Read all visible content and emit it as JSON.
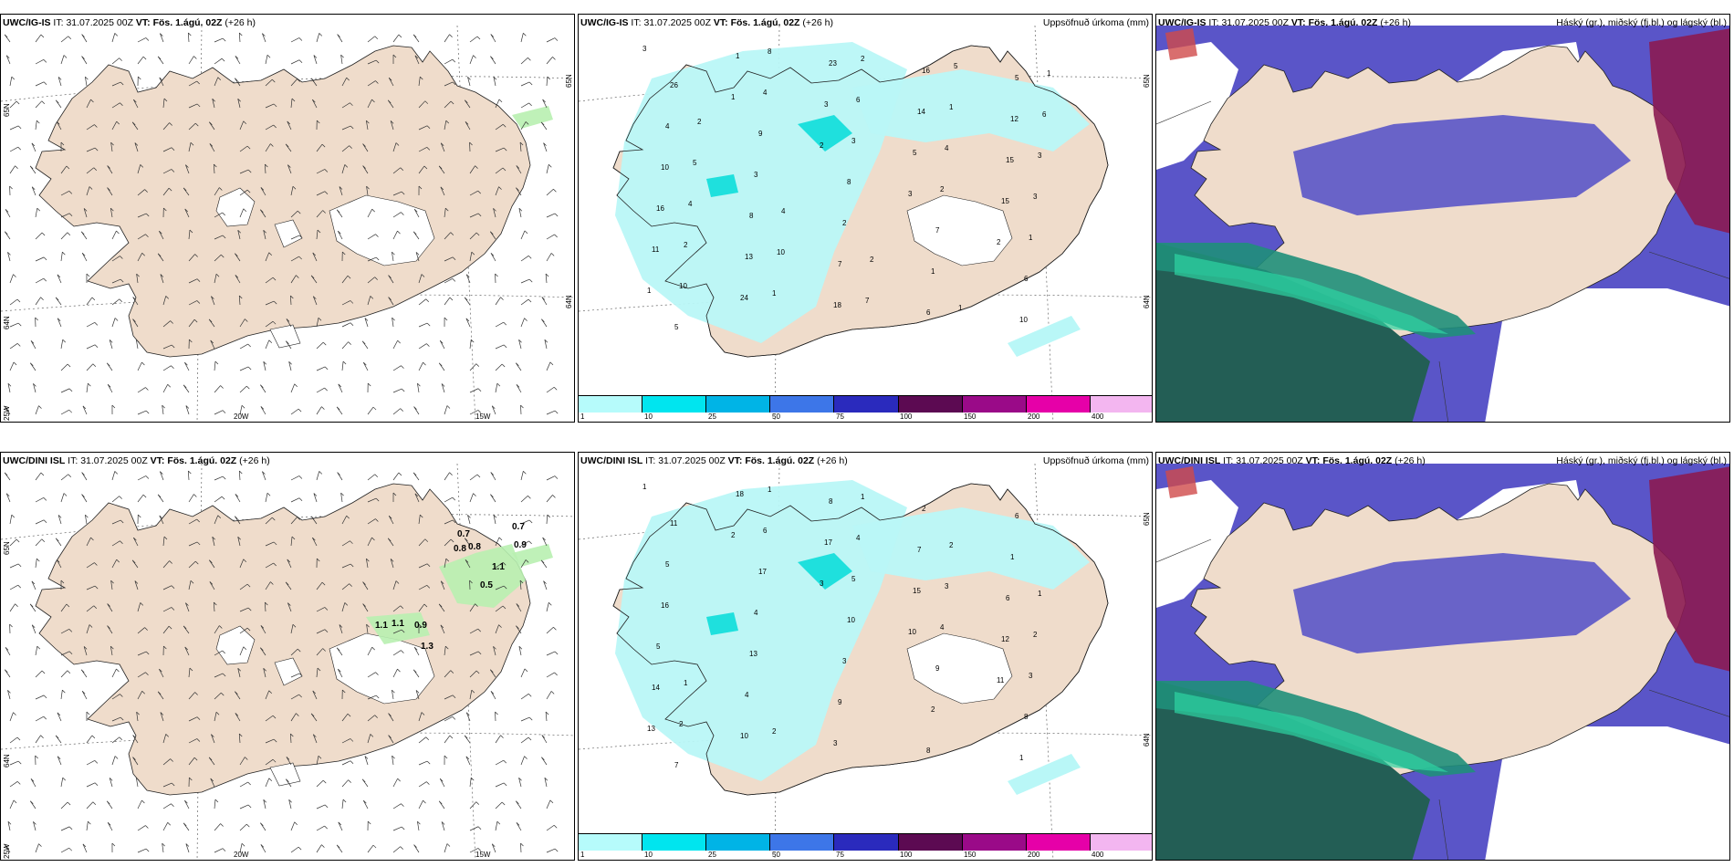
{
  "panels": [
    {
      "id": "top-wind",
      "model": "UWC/IG-IS",
      "it_label": "IT:",
      "it_value": "31.07.2025 00Z",
      "vt_label": "VT:",
      "vt_value": "Fös. 1.ágú. 02Z",
      "lead": "(+26 h)",
      "right_title": "",
      "kind": "wind",
      "lon_labels": [
        "20W",
        "15W"
      ],
      "lat_labels": [
        "65N",
        "64N",
        "25W"
      ],
      "lat_labels_right": [
        "65N",
        "64N"
      ],
      "numbers": []
    },
    {
      "id": "top-precip",
      "model": "UWC/IG-IS",
      "it_label": "IT:",
      "it_value": "31.07.2025 00Z",
      "vt_label": "VT:",
      "vt_value": "Fös. 1.ágú. 02Z",
      "lead": "(+26 h)",
      "right_title": "Uppsöfnuð úrkoma (mm)",
      "kind": "precip",
      "lat_labels_right": [
        "65N",
        "64N"
      ],
      "numbers": [
        "3",
        "1",
        "2",
        "3",
        "2",
        "1",
        "1",
        "3",
        "5",
        "15",
        "11",
        "24",
        "23",
        "14",
        "15",
        "16",
        "13",
        "18",
        "16",
        "12",
        "10",
        "8",
        "7",
        "6",
        "5",
        "4",
        "3",
        "2",
        "1",
        "10",
        "26",
        "9",
        "8",
        "7",
        "6",
        "5",
        "4",
        "3",
        "2",
        "1",
        "10",
        "8",
        "6",
        "4",
        "3",
        "2",
        "1",
        "2",
        "1",
        "3",
        "4",
        "10",
        "7",
        "5",
        "6",
        "5",
        "4",
        "2",
        "1",
        "1",
        "2"
      ]
    },
    {
      "id": "top-cloud",
      "model": "UWC/IG-IS",
      "it_label": "IT:",
      "it_value": "31.07.2025 00Z",
      "vt_label": "VT:",
      "vt_value": "Fös. 1.ágú. 02Z",
      "lead": "(+26 h)",
      "right_title": "Háský (gr.), miðský (fj.bl.) og lágský (bl.)",
      "kind": "cloud",
      "numbers": []
    },
    {
      "id": "bottom-wind",
      "model": "UWC/DINI ISL",
      "it_label": "IT:",
      "it_value": "31.07.2025 00Z",
      "vt_label": "VT:",
      "vt_value": "Fös. 1.ágú. 02Z",
      "lead": "(+26 h)",
      "right_title": "",
      "kind": "wind",
      "lon_labels": [
        "20W",
        "15W"
      ],
      "lat_labels": [
        "65N",
        "64N",
        "25W"
      ],
      "lat_labels_right": [],
      "numbers": [
        "0.7",
        "0.8",
        "0.8",
        "1.1",
        "0.9",
        "0.7",
        "0.5",
        "1.1",
        "1.1",
        "0.9",
        "1.3"
      ]
    },
    {
      "id": "bottom-precip",
      "model": "UWC/DINI ISL",
      "it_label": "IT:",
      "it_value": "31.07.2025 00Z",
      "vt_label": "VT:",
      "vt_value": "Fös. 1.ágú. 02Z",
      "lead": "(+26 h)",
      "right_title": "Uppsöfnuð úrkoma (mm)",
      "kind": "precip",
      "lat_labels_right": [
        "65N",
        "64N"
      ],
      "numbers": [
        "1",
        "2",
        "3",
        "10",
        "11",
        "13",
        "18",
        "17",
        "15",
        "12",
        "14",
        "10",
        "8",
        "7",
        "6",
        "5",
        "4",
        "3",
        "2",
        "1",
        "16",
        "13",
        "9",
        "8",
        "6",
        "5",
        "4",
        "3",
        "2",
        "1",
        "11",
        "17",
        "10",
        "9",
        "8",
        "7",
        "6",
        "5",
        "4",
        "3",
        "2",
        "1",
        "4",
        "3",
        "2",
        "1",
        "2",
        "1",
        "2",
        "1"
      ]
    },
    {
      "id": "bottom-cloud",
      "model": "UWC/DINI ISL",
      "it_label": "IT:",
      "it_value": "31.07.2025 00Z",
      "vt_label": "VT:",
      "vt_value": "Fös. 1.ágú. 02Z",
      "lead": "(+26 h)",
      "right_title": "Háský (gr.), miðský (fj.bl.) og lágský (bl.)",
      "kind": "cloud",
      "numbers": []
    }
  ],
  "colorbar": {
    "labels": [
      "1",
      "10",
      "25",
      "50",
      "75",
      "100",
      "150",
      "200",
      "400"
    ],
    "colors": [
      "#b6fbfb",
      "#00e5ef",
      "#00b4e6",
      "#3d76e8",
      "#2a2abd",
      "#5c0a52",
      "#9a0a88",
      "#e600a8",
      "#f3b6f0"
    ]
  },
  "colors": {
    "land": "#efdccb",
    "precip_light": "#b9f7f7",
    "precip_mid": "#1fe0dd",
    "mid_cloud": "#5a55c8",
    "high_cloud": "#8b1b52",
    "low_cloud": "#1f8f7a",
    "sea_dark": "#235e55",
    "wind_green": "#b8f0b0"
  }
}
